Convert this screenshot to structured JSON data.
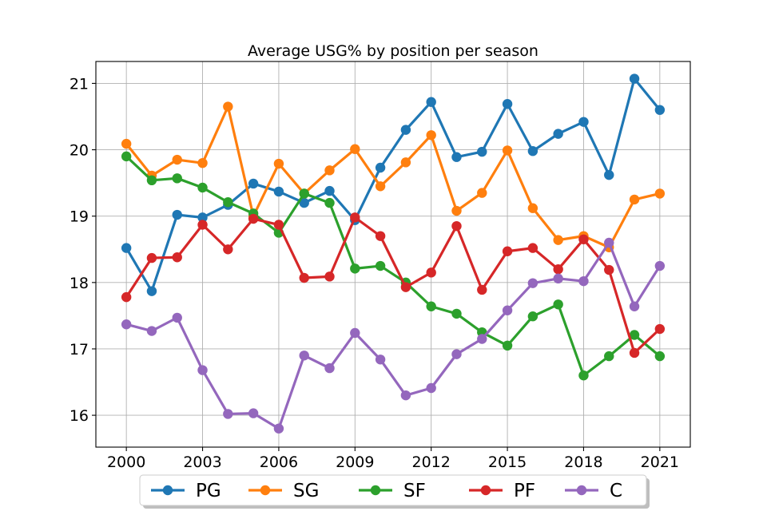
{
  "chart_data": {
    "type": "line",
    "title": "Average USG% by position per season",
    "xlabel": "",
    "ylabel": "",
    "x": [
      2000,
      2001,
      2002,
      2003,
      2004,
      2005,
      2006,
      2007,
      2008,
      2009,
      2010,
      2011,
      2012,
      2013,
      2014,
      2015,
      2016,
      2017,
      2018,
      2019,
      2020,
      2021
    ],
    "xlim": [
      1998.8,
      2022.2
    ],
    "ylim": [
      15.52,
      21.33
    ],
    "xticks": [
      2000,
      2003,
      2006,
      2009,
      2012,
      2015,
      2018,
      2021
    ],
    "yticks": [
      16,
      17,
      18,
      19,
      20,
      21
    ],
    "grid": true,
    "legend_position": "bottom-center",
    "series": [
      {
        "name": "PG",
        "color": "#1f77b4",
        "values": [
          18.52,
          17.87,
          19.02,
          18.98,
          19.17,
          19.49,
          19.37,
          19.2,
          19.38,
          18.94,
          19.73,
          20.3,
          20.72,
          19.89,
          19.97,
          20.69,
          19.98,
          20.24,
          20.42,
          19.62,
          21.07,
          20.6
        ]
      },
      {
        "name": "SG",
        "color": "#ff7f0e",
        "values": [
          20.09,
          19.61,
          19.85,
          19.8,
          20.65,
          19.0,
          19.79,
          19.34,
          19.69,
          20.01,
          19.45,
          19.81,
          20.22,
          19.08,
          19.35,
          19.99,
          19.12,
          18.64,
          18.7,
          18.53,
          19.25,
          19.34
        ]
      },
      {
        "name": "SF",
        "color": "#2ca02c",
        "values": [
          19.9,
          19.54,
          19.57,
          19.43,
          19.21,
          19.04,
          18.75,
          19.34,
          19.2,
          18.21,
          18.25,
          18.0,
          17.64,
          17.53,
          17.25,
          17.05,
          17.49,
          17.67,
          16.6,
          16.89,
          17.21,
          16.89
        ]
      },
      {
        "name": "PF",
        "color": "#d62728",
        "values": [
          17.78,
          18.37,
          18.38,
          18.87,
          18.5,
          18.96,
          18.87,
          18.07,
          18.09,
          18.98,
          18.7,
          17.93,
          18.15,
          18.85,
          17.89,
          18.47,
          18.52,
          18.2,
          18.65,
          18.19,
          16.94,
          17.3
        ]
      },
      {
        "name": "C",
        "color": "#9467bd",
        "values": [
          17.37,
          17.27,
          17.47,
          16.68,
          16.02,
          16.03,
          15.8,
          16.9,
          16.71,
          17.24,
          16.84,
          16.3,
          16.41,
          16.92,
          17.15,
          17.58,
          17.99,
          18.06,
          18.02,
          18.6,
          17.64,
          18.25
        ]
      }
    ]
  }
}
